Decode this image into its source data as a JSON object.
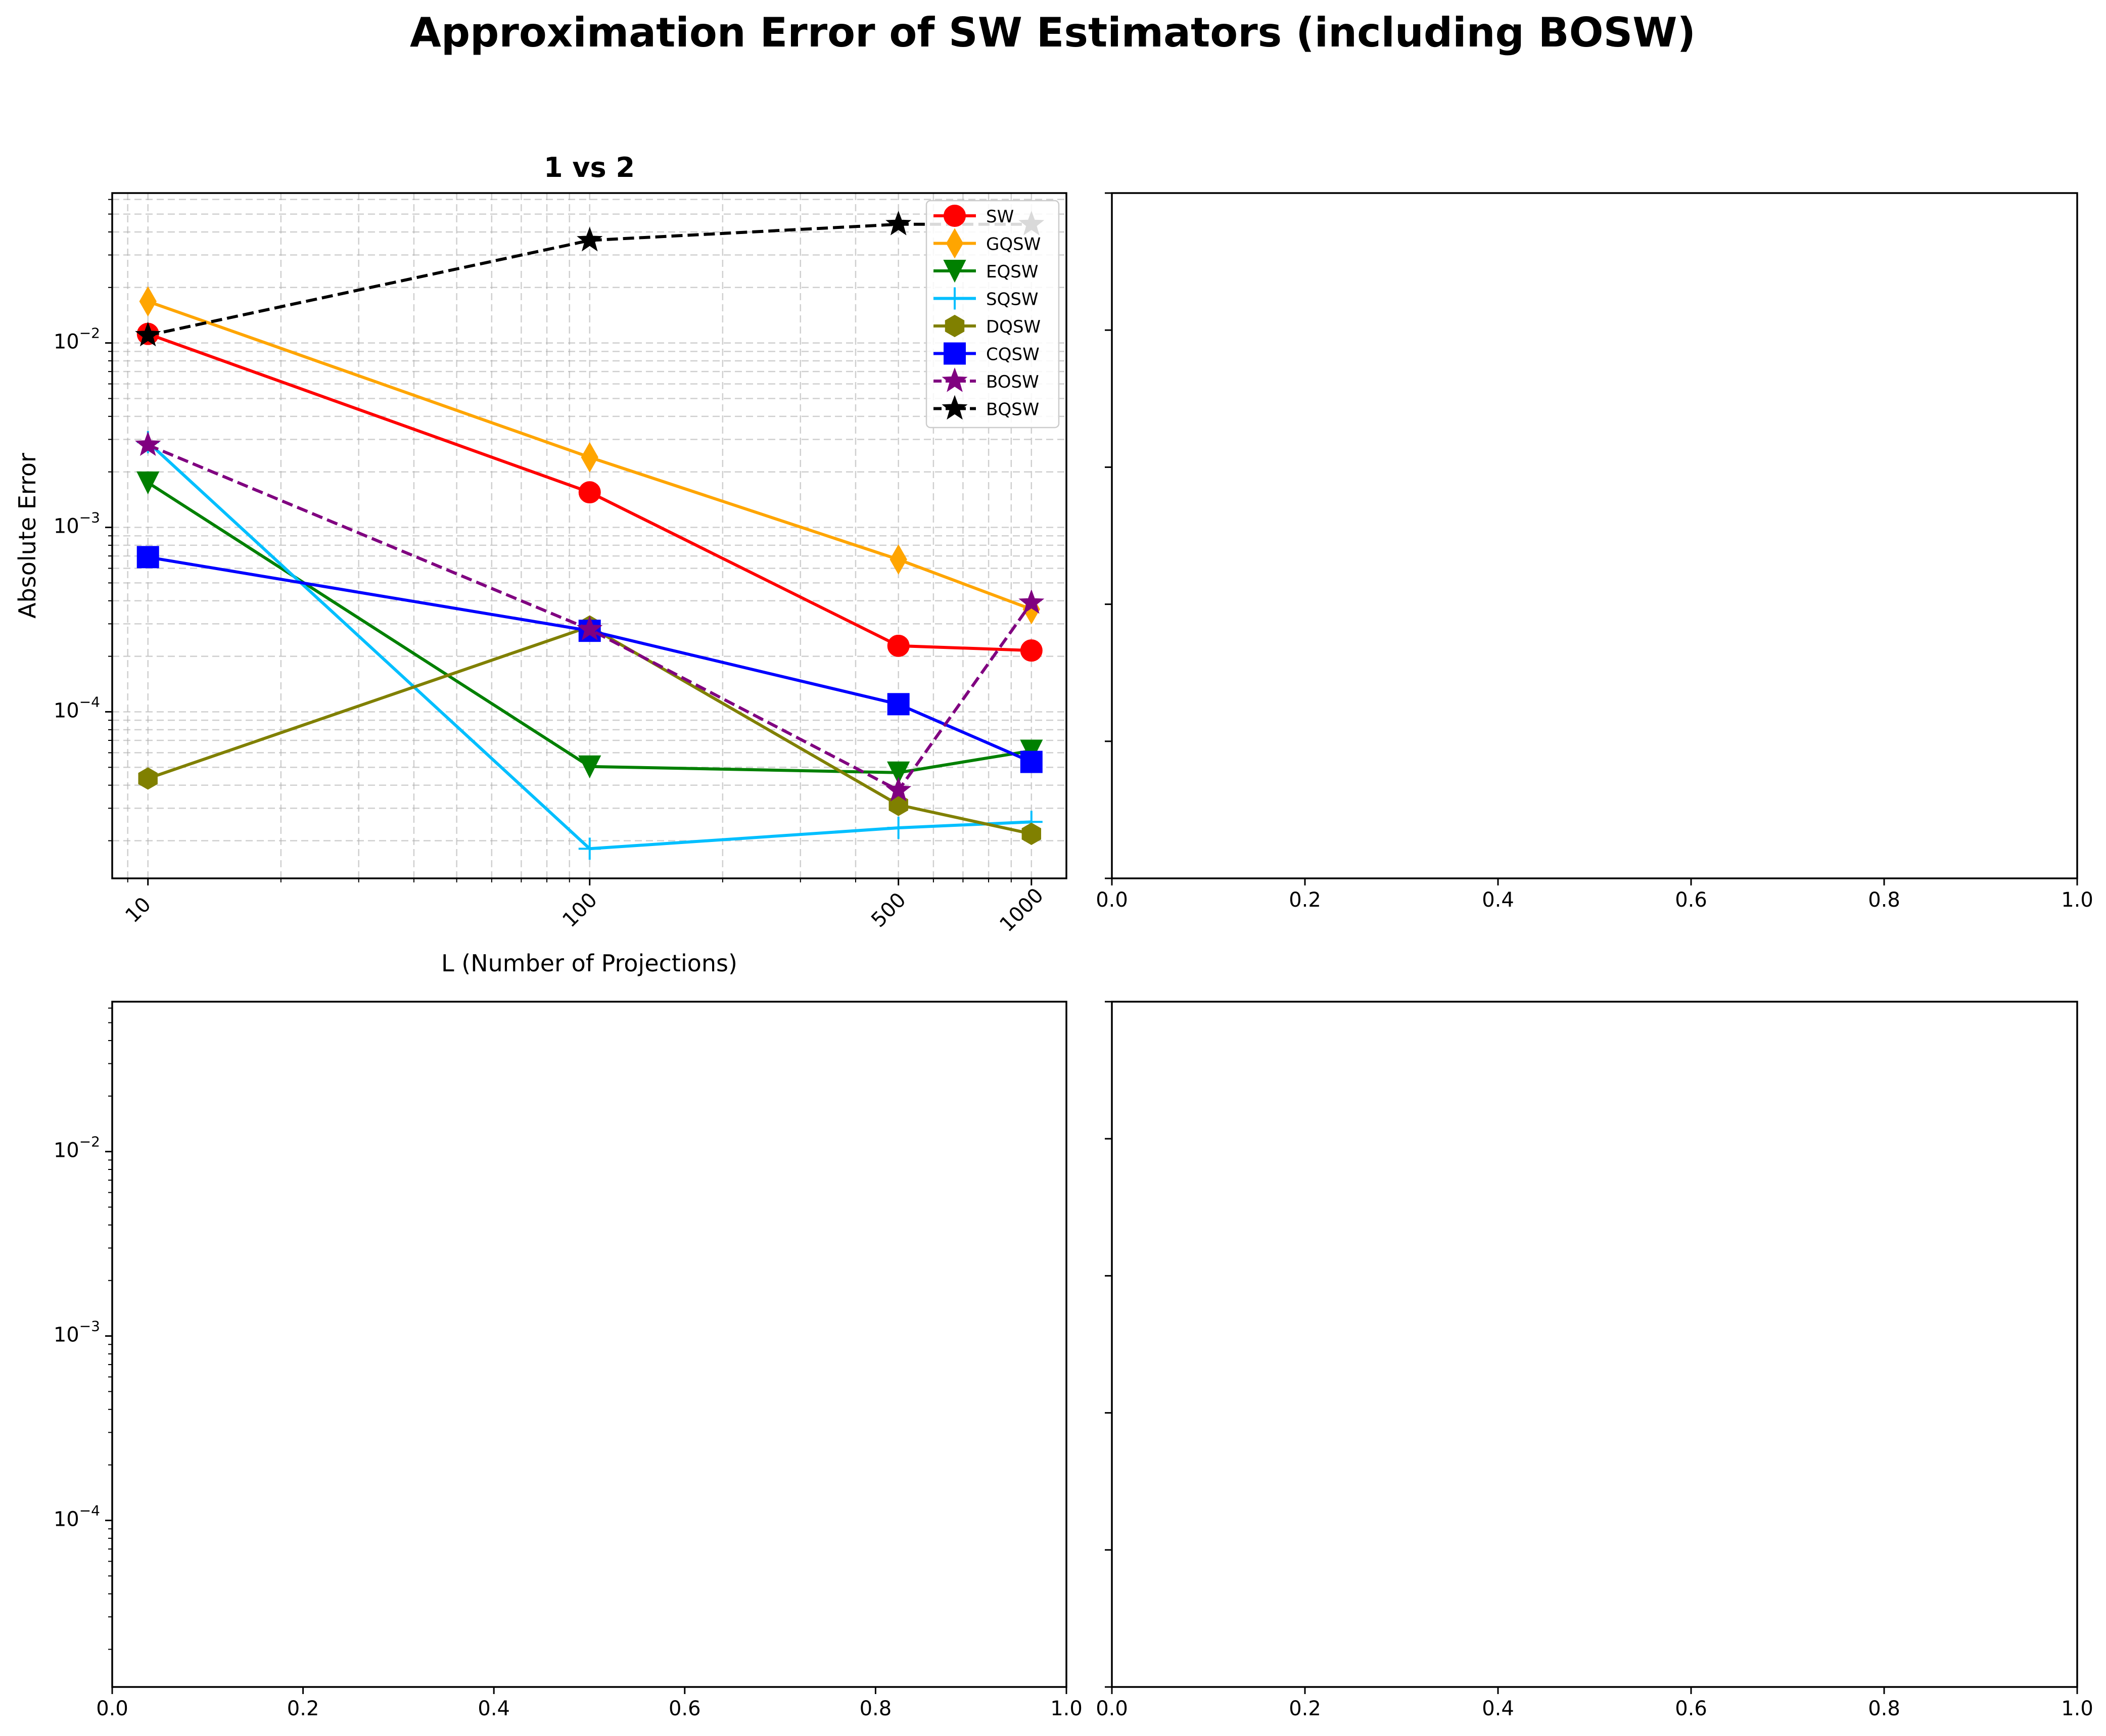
{
  "figure": {
    "title": "Approximation Error of SW Estimators (including BOSW)"
  },
  "chart_data": [
    {
      "type": "line",
      "panel": "top-left",
      "title": "1 vs 2",
      "xlabel": "L (Number of Projections)",
      "ylabel": "Absolute Error",
      "xscale": "log",
      "yscale": "log",
      "xlim": [
        8.3,
        1200
      ],
      "ylim": [
        1.25e-05,
        0.065
      ],
      "x": [
        10,
        100,
        500,
        1000
      ],
      "xtick_labels": [
        "10",
        "100",
        "500",
        "1000"
      ],
      "ytick_labels": [
        "10^-4",
        "10^-3",
        "10^-2"
      ],
      "grid": true,
      "legend_position": "top-right",
      "series": [
        {
          "name": "SW",
          "color": "#ff0000",
          "marker": "circle",
          "linestyle": "solid",
          "values": [
            0.0112,
            0.00155,
            0.000228,
            0.000215
          ]
        },
        {
          "name": "GQSW",
          "color": "#ffa500",
          "marker": "thin_diamond",
          "linestyle": "solid",
          "values": [
            0.0168,
            0.0024,
            0.00067,
            0.00036
          ]
        },
        {
          "name": "EQSW",
          "color": "#008000",
          "marker": "triangle_down",
          "linestyle": "solid",
          "values": [
            0.00175,
            5.05e-05,
            4.68e-05,
            6.15e-05
          ]
        },
        {
          "name": "SQSW",
          "color": "#00bfff",
          "marker": "plus",
          "linestyle": "solid",
          "values": [
            0.0029,
            1.81e-05,
            2.35e-05,
            2.53e-05
          ]
        },
        {
          "name": "DQSW",
          "color": "#808000",
          "marker": "hexagon",
          "linestyle": "solid",
          "values": [
            4.35e-05,
            0.00029,
            3.13e-05,
            2.18e-05
          ]
        },
        {
          "name": "CQSW",
          "color": "#0000ff",
          "marker": "square",
          "linestyle": "solid",
          "values": [
            0.00069,
            0.000275,
            0.00011,
            5.35e-05
          ]
        },
        {
          "name": "BOSW",
          "color": "#800080",
          "marker": "star",
          "linestyle": "dashed",
          "values": [
            0.0028,
            0.00028,
            3.75e-05,
            0.00039
          ]
        },
        {
          "name": "BQSW",
          "color": "#000000",
          "marker": "star",
          "linestyle": "dashed",
          "values": [
            0.011,
            0.036,
            0.044,
            0.044
          ]
        }
      ]
    },
    {
      "type": "line",
      "panel": "top-right",
      "series": [],
      "xlim": [
        0,
        1
      ],
      "xtick_labels": [
        "0.0",
        "0.2",
        "0.4",
        "0.6",
        "0.8",
        "1.0"
      ],
      "ytick_labels": []
    },
    {
      "type": "line",
      "panel": "bottom-left",
      "series": [],
      "xlim": [
        0,
        1
      ],
      "ylim": [
        1.25e-05,
        0.065
      ],
      "yscale": "log",
      "xtick_labels": [
        "0.0",
        "0.2",
        "0.4",
        "0.6",
        "0.8",
        "1.0"
      ],
      "ytick_labels": [
        "10^-4",
        "10^-3",
        "10^-2"
      ]
    },
    {
      "type": "line",
      "panel": "bottom-right",
      "series": [],
      "xlim": [
        0,
        1
      ],
      "xtick_labels": [
        "0.0",
        "0.2",
        "0.4",
        "0.6",
        "0.8",
        "1.0"
      ],
      "ytick_labels": []
    }
  ]
}
